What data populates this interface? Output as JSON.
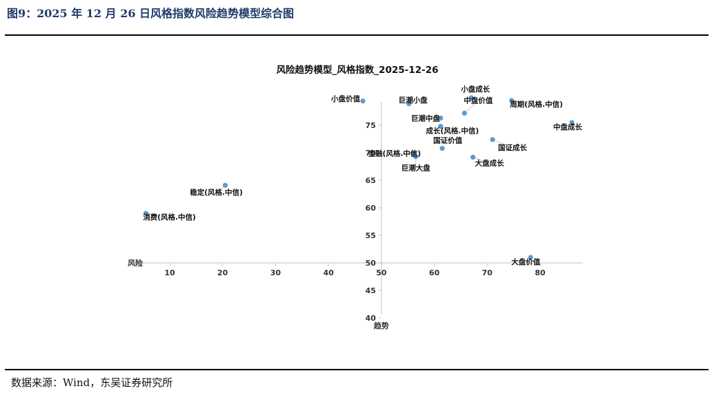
{
  "header": {
    "figure_title": "图9：2025 年 12 月 26 日风格指数风险趋势模型综合图"
  },
  "footer": {
    "source": "数据来源：Wind，东吴证券研究所"
  },
  "chart_data": {
    "type": "scatter",
    "title": "风险趋势模型_风格指数_2025-12-26",
    "xlabel": "风险",
    "ylabel": "趋势",
    "xlim": [
      5,
      87
    ],
    "ylim": [
      40,
      80
    ],
    "x_ticks": [
      10,
      20,
      30,
      40,
      50,
      60,
      70,
      80
    ],
    "y_ticks": [
      40,
      45,
      50,
      55,
      60,
      65,
      70,
      75
    ],
    "axis_cross": {
      "x": 50,
      "y": 50
    },
    "grid": false,
    "marker_color": "#5b9bd5",
    "points": [
      {
        "name": "小盘价值",
        "x": 46.5,
        "y": 79.4
      },
      {
        "name": "巨潮小盘",
        "x": 55.2,
        "y": 78.9
      },
      {
        "name": "小盘成长",
        "x": 67.0,
        "y": 80.0
      },
      {
        "name": "中盘价值",
        "x": 65.7,
        "y": 77.2
      },
      {
        "name": "周期(风格.中信)",
        "x": 74.6,
        "y": 79.5
      },
      {
        "name": "巨潮中盘",
        "x": 61.2,
        "y": 76.3
      },
      {
        "name": "中盘成长",
        "x": 86.0,
        "y": 75.5
      },
      {
        "name": "成长(风格.中信)",
        "x": 61.2,
        "y": 74.8
      },
      {
        "name": "国证成长",
        "x": 71.0,
        "y": 72.4
      },
      {
        "name": "国证价值",
        "x": 61.5,
        "y": 70.8
      },
      {
        "name": "金融(风格.中信)",
        "x": 56.0,
        "y": 69.8
      },
      {
        "name": "巨潮大盘",
        "x": 56.5,
        "y": 69.3
      },
      {
        "name": "大盘成长",
        "x": 67.3,
        "y": 69.2
      },
      {
        "name": "稳定(风格.中信)",
        "x": 20.5,
        "y": 64.1
      },
      {
        "name": "消费(风格.中信)",
        "x": 5.5,
        "y": 59.0
      },
      {
        "name": "大盘价值",
        "x": 78.2,
        "y": 51.0
      }
    ]
  }
}
